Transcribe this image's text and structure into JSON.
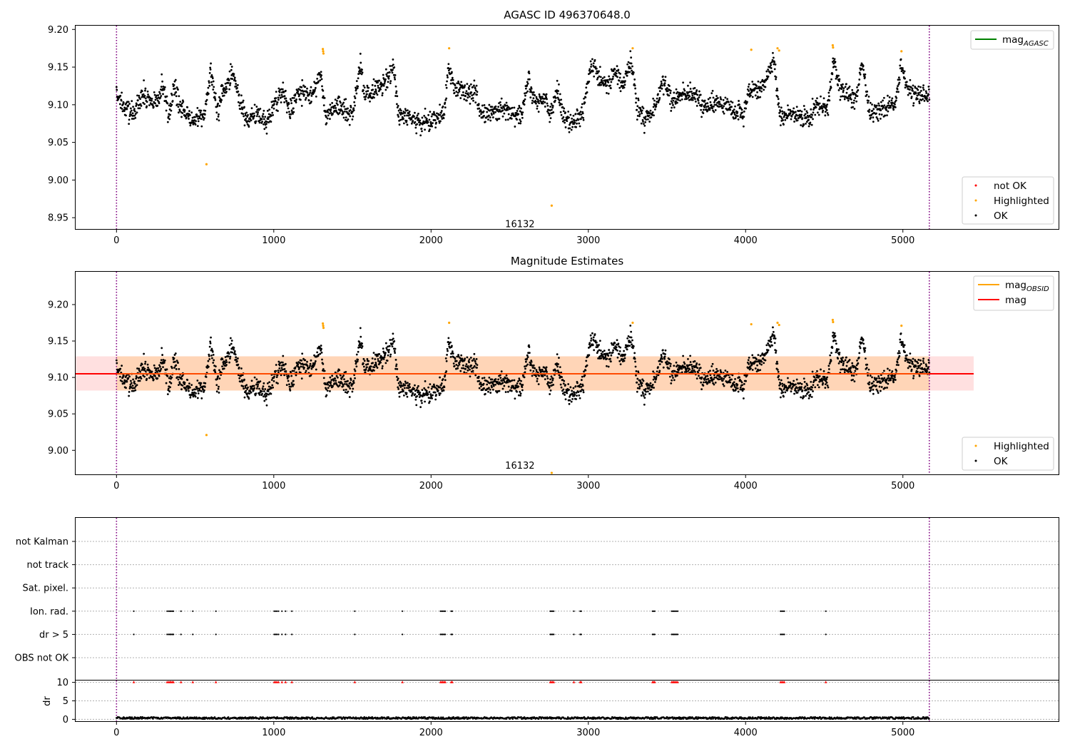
{
  "chart_data": [
    {
      "type": "scatter",
      "title": "AGASC ID 496370648.0",
      "xlim": [
        -260,
        5990
      ],
      "ylim": [
        8.935,
        9.205
      ],
      "x_ticks": [
        0,
        1000,
        2000,
        3000,
        4000,
        5000
      ],
      "y_ticks": [
        8.95,
        9.0,
        9.05,
        9.1,
        9.15,
        9.2
      ],
      "y_tick_labels": [
        "8.95",
        "9.00",
        "9.05",
        "9.10",
        "9.15",
        "9.20"
      ],
      "vlines": [
        0,
        5168
      ],
      "annotation": {
        "text": "16132",
        "x": 2565,
        "y": 8.94
      },
      "legend_upper": {
        "placement": "upper right",
        "entries": [
          {
            "label": "mag",
            "sub": "AGASC",
            "color": "#008000"
          }
        ]
      },
      "legend_lower": {
        "placement": "lower right",
        "entries": [
          {
            "label": "not OK",
            "color": "#ff0000"
          },
          {
            "label": "Highlighted",
            "color": "#ffa500"
          },
          {
            "label": "OK",
            "color": "#000000"
          }
        ]
      },
      "series": [
        {
          "name": "OK",
          "color": "#000000",
          "x_range": [
            0,
            5168
          ],
          "n": 2500,
          "segments": [
            [
              0,
              9.115
            ],
            [
              60,
              9.095
            ],
            [
              110,
              9.09
            ],
            [
              160,
              9.11
            ],
            [
              260,
              9.105
            ],
            [
              300,
              9.125
            ],
            [
              330,
              9.085
            ],
            [
              370,
              9.125
            ],
            [
              410,
              9.095
            ],
            [
              480,
              9.08
            ],
            [
              560,
              9.09
            ],
            [
              600,
              9.145
            ],
            [
              640,
              9.09
            ],
            [
              680,
              9.12
            ],
            [
              740,
              9.14
            ],
            [
              790,
              9.1
            ],
            [
              830,
              9.08
            ],
            [
              900,
              9.085
            ],
            [
              960,
              9.075
            ],
            [
              1000,
              9.1
            ],
            [
              1060,
              9.12
            ],
            [
              1100,
              9.09
            ],
            [
              1150,
              9.12
            ],
            [
              1240,
              9.11
            ],
            [
              1300,
              9.14
            ],
            [
              1330,
              9.085
            ],
            [
              1400,
              9.1
            ],
            [
              1500,
              9.085
            ],
            [
              1550,
              9.155
            ],
            [
              1580,
              9.115
            ],
            [
              1700,
              9.125
            ],
            [
              1760,
              9.15
            ],
            [
              1790,
              9.09
            ],
            [
              1860,
              9.085
            ],
            [
              1940,
              9.075
            ],
            [
              2080,
              9.085
            ],
            [
              2110,
              9.15
            ],
            [
              2150,
              9.12
            ],
            [
              2280,
              9.115
            ],
            [
              2320,
              9.085
            ],
            [
              2450,
              9.095
            ],
            [
              2530,
              9.085
            ],
            [
              2580,
              9.09
            ],
            [
              2620,
              9.14
            ],
            [
              2650,
              9.105
            ],
            [
              2720,
              9.11
            ],
            [
              2760,
              9.085
            ],
            [
              2800,
              9.12
            ],
            [
              2840,
              9.09
            ],
            [
              2880,
              9.075
            ],
            [
              2960,
              9.085
            ],
            [
              3020,
              9.155
            ],
            [
              3060,
              9.14
            ],
            [
              3130,
              9.125
            ],
            [
              3180,
              9.145
            ],
            [
              3220,
              9.12
            ],
            [
              3270,
              9.16
            ],
            [
              3310,
              9.095
            ],
            [
              3360,
              9.08
            ],
            [
              3420,
              9.095
            ],
            [
              3480,
              9.13
            ],
            [
              3530,
              9.105
            ],
            [
              3600,
              9.115
            ],
            [
              3700,
              9.11
            ],
            [
              3760,
              9.095
            ],
            [
              3820,
              9.105
            ],
            [
              3900,
              9.095
            ],
            [
              3990,
              9.085
            ],
            [
              4020,
              9.12
            ],
            [
              4100,
              9.12
            ],
            [
              4180,
              9.16
            ],
            [
              4220,
              9.085
            ],
            [
              4300,
              9.09
            ],
            [
              4400,
              9.08
            ],
            [
              4450,
              9.1
            ],
            [
              4520,
              9.095
            ],
            [
              4560,
              9.16
            ],
            [
              4600,
              9.12
            ],
            [
              4700,
              9.105
            ],
            [
              4740,
              9.155
            ],
            [
              4790,
              9.09
            ],
            [
              4880,
              9.095
            ],
            [
              4950,
              9.1
            ],
            [
              4990,
              9.155
            ],
            [
              5030,
              9.12
            ],
            [
              5100,
              9.11
            ],
            [
              5168,
              9.115
            ]
          ]
        },
        {
          "name": "Highlighted",
          "color": "#ffa500",
          "points": [
            [
              1312,
              9.174
            ],
            [
              1314,
              9.171
            ],
            [
              1316,
              9.168
            ],
            [
              572,
              9.021
            ],
            [
              2115,
              9.175
            ],
            [
              2767,
              8.966
            ],
            [
              3282,
              9.175
            ],
            [
              4036,
              9.173
            ],
            [
              4203,
              9.175
            ],
            [
              4213,
              9.172
            ],
            [
              4554,
              9.179
            ],
            [
              4556,
              9.176
            ],
            [
              4991,
              9.171
            ]
          ]
        }
      ]
    },
    {
      "type": "scatter",
      "title": "Magnitude Estimates",
      "xlim": [
        -260,
        5990
      ],
      "ylim": [
        8.967,
        9.245
      ],
      "x_ticks": [
        0,
        1000,
        2000,
        3000,
        4000,
        5000
      ],
      "y_ticks": [
        9.0,
        9.05,
        9.1,
        9.15,
        9.2
      ],
      "y_tick_labels": [
        "9.00",
        "9.05",
        "9.10",
        "9.15",
        "9.20"
      ],
      "vlines": [
        0,
        5168
      ],
      "mean_mag": 9.105,
      "band_mag": [
        9.082,
        9.129
      ],
      "band_obs": [
        9.082,
        9.129
      ],
      "annotation": {
        "text": "16132",
        "x": 2565,
        "y": 8.975
      },
      "legend_upper": {
        "placement": "upper right",
        "entries": [
          {
            "label": "mag",
            "sub": "OBSID",
            "color": "#ffa500"
          },
          {
            "label": "mag",
            "sub": "",
            "color": "#ff0000"
          }
        ]
      },
      "legend_lower": {
        "placement": "lower right",
        "entries": [
          {
            "label": "Highlighted",
            "color": "#ffa500"
          },
          {
            "label": "OK",
            "color": "#000000"
          }
        ]
      }
    },
    {
      "type": "scatter",
      "title": "",
      "xlim": [
        -260,
        5990
      ],
      "x_ticks": [
        0,
        1000,
        2000,
        3000,
        4000,
        5000
      ],
      "flag_rows": [
        "not Kalman",
        "not track",
        "Sat. pixel.",
        "Ion. rad.",
        "dr > 5",
        "OBS not OK"
      ],
      "flag_times": [
        110,
        322,
        332,
        340,
        347,
        355,
        362,
        410,
        485,
        632,
        1003,
        1012,
        1020,
        1030,
        1052,
        1075,
        1115,
        1515,
        1818,
        2060,
        2068,
        2075,
        2083,
        2090,
        2128,
        2135,
        2758,
        2765,
        2772,
        2780,
        2908,
        2948,
        2955,
        3408,
        3415,
        3422,
        3530,
        3538,
        3545,
        3552,
        3560,
        3568,
        4222,
        4230,
        4238,
        4246,
        4510
      ],
      "dr_axis": {
        "ylabel": "dr",
        "ylim": [
          -0.5,
          10.5
        ],
        "y_ticks": [
          0,
          5,
          10
        ],
        "y_tick_labels": [
          "0",
          "5",
          "10"
        ],
        "clip_value": 10,
        "baseline": 0.35
      }
    }
  ]
}
